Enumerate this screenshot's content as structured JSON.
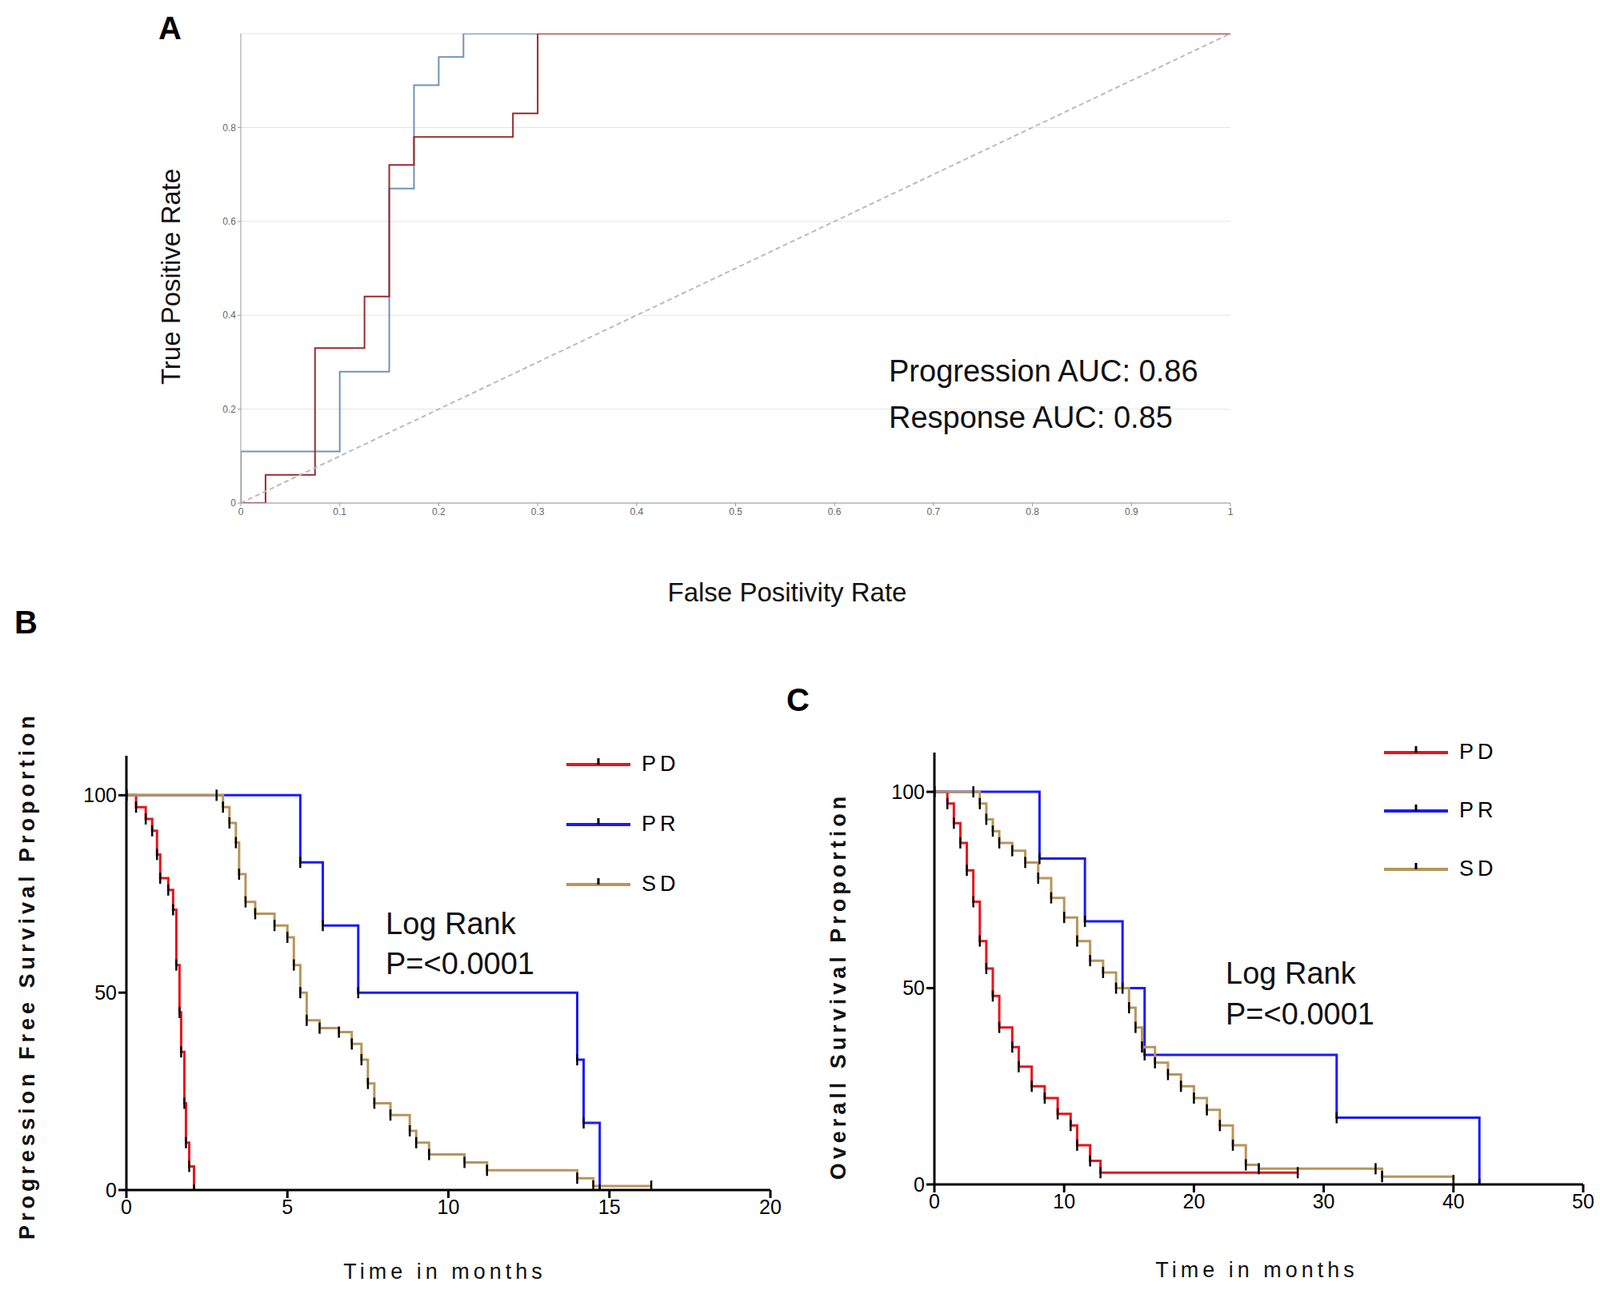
{
  "chart_data": [
    {
      "panel_label": "A",
      "type": "line",
      "x_label": "False Positivity Rate",
      "y_label": "True Positive Rate",
      "xlim": [
        0,
        1
      ],
      "ylim": [
        0,
        1
      ],
      "xticks": [
        0,
        0.1,
        0.2,
        0.3,
        0.4,
        0.5,
        0.6,
        0.7,
        0.8,
        0.9,
        1
      ],
      "yticks": [
        0,
        0.2,
        0.4,
        0.6,
        0.8
      ],
      "grid": true,
      "annotations": [
        "Progression AUC: 0.86",
        "Response AUC: 0.85"
      ],
      "series": [
        {
          "color": "#6f93b8",
          "line_style": "step",
          "x": [
            0,
            0,
            0.1,
            0.15,
            0.175,
            0.2,
            0.225,
            1
          ],
          "values": [
            0,
            0.11,
            0.28,
            0.67,
            0.89,
            0.95,
            1,
            1
          ]
        },
        {
          "color": "#9b2b2b",
          "line_style": "step",
          "x": [
            0,
            0.025,
            0.075,
            0.125,
            0.15,
            0.175,
            0.275,
            0.3,
            1
          ],
          "values": [
            0,
            0.06,
            0.33,
            0.44,
            0.72,
            0.78,
            0.83,
            1,
            1
          ]
        },
        {
          "color": "#bbbbbb",
          "line_style": "dashed",
          "x": [
            0,
            1
          ],
          "values": [
            0,
            1
          ]
        }
      ]
    },
    {
      "panel_label": "B",
      "type": "line",
      "x_label": "Time in months",
      "y_label": "Progression Free Survival Proportion",
      "xlim": [
        0,
        20
      ],
      "ylim": [
        0,
        110
      ],
      "xticks": [
        0,
        5,
        10,
        15,
        20
      ],
      "yticks": [
        0,
        50,
        100
      ],
      "legend": "top right",
      "marker": "tick",
      "annotations": [
        "Log Rank",
        "P=<0.0001"
      ],
      "series": [
        {
          "name": "PD",
          "color": "#e8141b",
          "line_style": "step",
          "x": [
            0,
            0.3,
            0.6,
            0.8,
            0.95,
            1.05,
            1.3,
            1.45,
            1.55,
            1.65,
            1.7,
            1.8,
            1.85,
            1.95,
            2.1
          ],
          "values": [
            100,
            97,
            94,
            91,
            85,
            79,
            76,
            71,
            57,
            45,
            35,
            22,
            12,
            6,
            0
          ]
        },
        {
          "name": "PR",
          "color": "#1a1aff",
          "line_style": "step",
          "x": [
            0,
            5.4,
            6.1,
            7.2,
            14.0,
            14.2,
            14.7
          ],
          "values": [
            100,
            83,
            67,
            50,
            33,
            17,
            0
          ]
        },
        {
          "name": "SD",
          "color": "#b8955a",
          "line_style": "step",
          "x": [
            0,
            2.8,
            3.0,
            3.2,
            3.4,
            3.5,
            3.7,
            4.0,
            4.6,
            5.0,
            5.2,
            5.4,
            5.6,
            6.0,
            6.6,
            7.0,
            7.3,
            7.5,
            7.7,
            8.2,
            8.8,
            9.0,
            9.4,
            10.5,
            11.2,
            14.0,
            14.5,
            16.3
          ],
          "values": [
            100,
            100,
            97,
            93,
            88,
            80,
            73,
            70,
            67,
            64,
            57,
            50,
            43,
            41,
            40,
            37,
            33,
            27,
            22,
            19,
            15,
            12,
            9,
            7,
            5,
            3,
            1,
            1
          ]
        }
      ]
    },
    {
      "panel_label": "C",
      "type": "line",
      "x_label": "Time in months",
      "y_label": "Overall Survival Proportion",
      "xlim": [
        0,
        50
      ],
      "ylim": [
        0,
        110
      ],
      "xticks": [
        0,
        10,
        20,
        30,
        40,
        50
      ],
      "yticks": [
        0,
        50,
        100
      ],
      "legend": "top right",
      "marker": "tick",
      "annotations": [
        "Log Rank",
        "P=<0.0001"
      ],
      "series": [
        {
          "name": "PD",
          "color": "#e8141b",
          "line_style": "step",
          "x": [
            0,
            1,
            1.5,
            2,
            2.5,
            3,
            3.5,
            4,
            4.5,
            5,
            6,
            6.5,
            7.5,
            8.5,
            9.5,
            10.5,
            11,
            12,
            12.8,
            28
          ],
          "values": [
            100,
            97,
            92,
            87,
            80,
            72,
            62,
            55,
            48,
            40,
            35,
            30,
            25,
            22,
            18,
            15,
            10,
            6,
            3,
            3
          ]
        },
        {
          "name": "PR",
          "color": "#1a1aff",
          "line_style": "step",
          "x": [
            0,
            8.1,
            11.6,
            14.5,
            16.2,
            31,
            42
          ],
          "values": [
            100,
            83,
            67,
            50,
            33,
            17,
            0
          ]
        },
        {
          "name": "SD",
          "color": "#b8955a",
          "line_style": "step",
          "x": [
            0,
            3,
            3.5,
            4,
            4.5,
            5,
            6,
            7,
            8,
            9,
            10,
            11,
            12,
            13,
            14,
            15,
            15.5,
            16,
            17,
            18,
            19,
            20,
            21,
            22,
            23,
            24,
            25,
            34,
            34.5,
            40
          ],
          "values": [
            100,
            100,
            97,
            93,
            90,
            87,
            85,
            82,
            78,
            73,
            68,
            62,
            57,
            54,
            50,
            45,
            40,
            35,
            31,
            28,
            25,
            22,
            19,
            15,
            10,
            5,
            4,
            4,
            2,
            1
          ]
        }
      ]
    }
  ]
}
